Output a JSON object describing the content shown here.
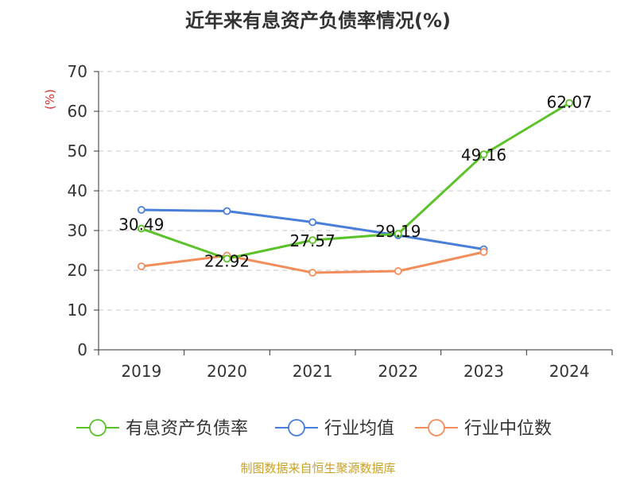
{
  "chart_data": {
    "type": "line",
    "title": "近年来有息资产负债率情况(%)",
    "ylabel": "(%)",
    "xlabel": "",
    "categories": [
      "2019",
      "2020",
      "2021",
      "2022",
      "2023",
      "2024"
    ],
    "ylim": [
      0,
      70
    ],
    "yticks": [
      0,
      10,
      20,
      30,
      40,
      50,
      60,
      70
    ],
    "grid": true,
    "legend_position": "bottom",
    "series": [
      {
        "name": "有息资产负债率",
        "color": "#5cc22a",
        "values": [
          30.49,
          22.92,
          27.57,
          29.19,
          49.16,
          62.07
        ],
        "labels": [
          "30.49",
          "22.92",
          "27.57",
          "29.19",
          "49.16",
          "62.07"
        ]
      },
      {
        "name": "行业均值",
        "color": "#4a7fd9",
        "values": [
          35.2,
          34.9,
          32.1,
          28.8,
          25.3,
          null
        ],
        "labels": []
      },
      {
        "name": "行业中位数",
        "color": "#f28e5c",
        "values": [
          21.0,
          23.7,
          19.4,
          19.8,
          24.6,
          null
        ],
        "labels": []
      }
    ]
  },
  "source": "制图数据来自恒生聚源数据库"
}
